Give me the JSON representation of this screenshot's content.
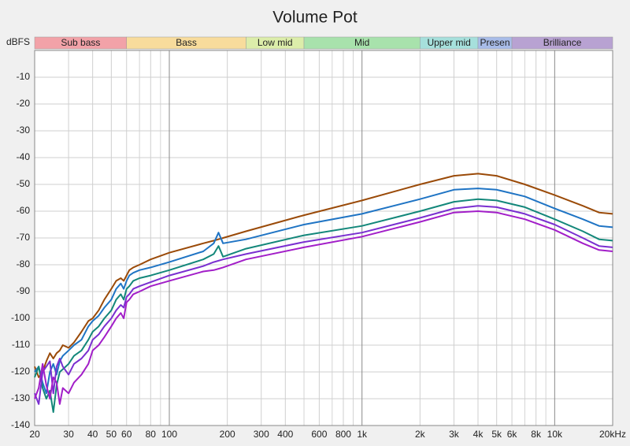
{
  "chart_data": {
    "type": "line",
    "title": "Volume Pot",
    "y_label": "dBFS",
    "xscale": "log",
    "xlim": [
      20,
      20000
    ],
    "ylim": [
      -140,
      0
    ],
    "yticks": [
      -10,
      -20,
      -30,
      -40,
      -50,
      -60,
      -70,
      -80,
      -90,
      -100,
      -110,
      -120,
      -130,
      -140
    ],
    "xticks": [
      20,
      30,
      40,
      50,
      60,
      80,
      100,
      200,
      300,
      400,
      600,
      800,
      {
        "value": 1000,
        "label": "1k"
      },
      {
        "value": 2000,
        "label": "2k"
      },
      {
        "value": 3000,
        "label": "3k"
      },
      {
        "value": 4000,
        "label": "4k"
      },
      {
        "value": 5000,
        "label": "5k"
      },
      {
        "value": 6000,
        "label": "6k"
      },
      {
        "value": 8000,
        "label": "8k"
      },
      {
        "value": 10000,
        "label": "10k"
      },
      {
        "value": 20000,
        "label": "20kHz"
      }
    ],
    "x_minor_grid": [
      70,
      90,
      500,
      700,
      900,
      7000,
      9000
    ],
    "grid": true,
    "bands": [
      {
        "label": "Sub bass",
        "from": 20,
        "to": 60,
        "color": "#f2a2a8"
      },
      {
        "label": "Bass",
        "from": 60,
        "to": 250,
        "color": "#f8dc9c"
      },
      {
        "label": "Low mid",
        "from": 250,
        "to": 500,
        "color": "#dcedaa"
      },
      {
        "label": "Mid",
        "from": 500,
        "to": 2000,
        "color": "#a8e2ac"
      },
      {
        "label": "Upper mid",
        "from": 2000,
        "to": 4000,
        "color": "#a6e0dc"
      },
      {
        "label": "Presen",
        "from": 4000,
        "to": 6000,
        "color": "#a8bce8"
      },
      {
        "label": "Brilliance",
        "from": 6000,
        "to": 20000,
        "color": "#b8a2d2"
      }
    ],
    "x": [
      20,
      21,
      22,
      23,
      24,
      25,
      26,
      27,
      28,
      30,
      32,
      35,
      38,
      40,
      43,
      46,
      50,
      53,
      56,
      58,
      60,
      62,
      65,
      70,
      80,
      100,
      150,
      170,
      180,
      190,
      250,
      500,
      1000,
      2000,
      3000,
      4000,
      5000,
      7000,
      10000,
      14000,
      17000,
      20000
    ],
    "series": [
      {
        "color": "#9a4a08",
        "values": [
          -118,
          -122,
          -120,
          -116,
          -113,
          -115,
          -113,
          -112,
          -110,
          -111,
          -109,
          -105,
          -101,
          -100,
          -97,
          -93,
          -89,
          -86,
          -85,
          -86,
          -84,
          -82,
          -81,
          -80,
          -78,
          -75.5,
          -72,
          -71,
          -70.5,
          -70,
          -67.5,
          -61.5,
          -56,
          -50,
          -46.8,
          -46,
          -46.8,
          -50,
          -54,
          -58,
          -60.5,
          -61
        ]
      },
      {
        "color": "#1f74c4",
        "values": [
          -120,
          -118,
          -124,
          -128,
          -120,
          -117,
          -121,
          -116,
          -114,
          -112,
          -110,
          -108,
          -103,
          -101,
          -99,
          -96,
          -93,
          -89,
          -87,
          -89,
          -86,
          -84,
          -83,
          -82,
          -81,
          -79,
          -75,
          -72,
          -68,
          -72,
          -70.5,
          -65,
          -61,
          -55.5,
          -52,
          -51.5,
          -52,
          -54.5,
          -59,
          -63,
          -65.5,
          -66
        ]
      },
      {
        "color": "#13877a",
        "values": [
          -122,
          -118,
          -126,
          -130,
          -127,
          -135,
          -125,
          -120,
          -119,
          -117,
          -114,
          -112,
          -108,
          -105,
          -103,
          -100,
          -97,
          -93,
          -91,
          -93,
          -89,
          -88,
          -86,
          -85,
          -84,
          -82,
          -78,
          -76,
          -73,
          -77,
          -74,
          -69,
          -65.5,
          -60,
          -56.5,
          -55.5,
          -56,
          -58.5,
          -63,
          -67.5,
          -70.5,
          -71
        ]
      },
      {
        "color": "#7a2fd0",
        "values": [
          -128,
          -132,
          -120,
          -118,
          -116,
          -128,
          -118,
          -115,
          -118,
          -121,
          -117,
          -115,
          -112,
          -108,
          -106,
          -103,
          -100,
          -97,
          -95,
          -96,
          -92,
          -91,
          -89,
          -88,
          -86.5,
          -84,
          -80.5,
          -79,
          -78.5,
          -78,
          -76,
          -71.5,
          -68,
          -62.5,
          -59,
          -58,
          -58.5,
          -61,
          -65,
          -70,
          -73,
          -73.5
        ]
      },
      {
        "color": "#a21ec8",
        "values": [
          -130,
          -126,
          -117,
          -125,
          -130,
          -122,
          -124,
          -132,
          -126,
          -128,
          -124,
          -121,
          -117,
          -112,
          -110,
          -107,
          -103,
          -100,
          -98,
          -100,
          -94,
          -93,
          -91,
          -90,
          -88,
          -86,
          -82.5,
          -82,
          -81.5,
          -81,
          -78,
          -73.5,
          -69.5,
          -64,
          -60.5,
          -60,
          -60.5,
          -63,
          -67,
          -72,
          -74.5,
          -75
        ]
      }
    ]
  }
}
